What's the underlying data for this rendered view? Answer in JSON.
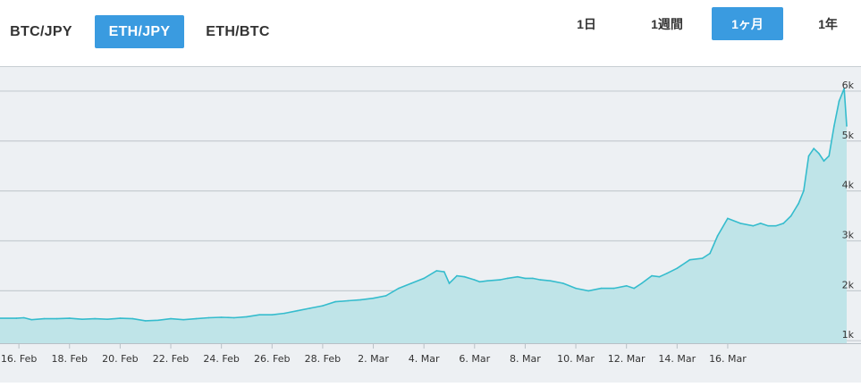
{
  "pair_tabs": [
    {
      "label": "BTC/JPY",
      "active": false
    },
    {
      "label": "ETH/JPY",
      "active": true
    },
    {
      "label": "ETH/BTC",
      "active": false
    }
  ],
  "range_tabs": [
    {
      "label": "1日",
      "active": false
    },
    {
      "label": "1週間",
      "active": false
    },
    {
      "label": "1ヶ月",
      "active": true
    },
    {
      "label": "1年",
      "active": false
    }
  ],
  "colors": {
    "accent": "#3a9be0",
    "line": "#35bccd",
    "fill": "#bfe4e8",
    "background": "#edf0f3"
  },
  "chart_data": {
    "type": "area",
    "title": "",
    "xlabel": "",
    "ylabel": "",
    "ylim": [
      0.95,
      6.5
    ],
    "y_ticks": [
      {
        "value": 1,
        "label": "1k"
      },
      {
        "value": 2,
        "label": "2k"
      },
      {
        "value": 3,
        "label": "3k"
      },
      {
        "value": 4,
        "label": "4k"
      },
      {
        "value": 5,
        "label": "5k"
      },
      {
        "value": 6,
        "label": "6k"
      }
    ],
    "x_ticks": [
      "16. Feb",
      "18. Feb",
      "20. Feb",
      "22. Feb",
      "24. Feb",
      "26. Feb",
      "28. Feb",
      "2. Mar",
      "4. Mar",
      "6. Mar",
      "8. Mar",
      "10. Mar",
      "12. Mar",
      "14. Mar",
      "16. Mar"
    ],
    "grid": true,
    "series": [
      {
        "x": [
          15.9,
          16.2,
          16.5,
          17.0,
          17.5,
          18.0,
          18.5,
          19.0,
          19.5,
          20.0,
          20.5,
          21.0,
          21.5,
          22.0,
          22.5,
          23.0,
          23.5,
          24.0,
          24.5,
          25.0,
          25.5,
          26.0,
          26.5,
          27.0,
          27.5,
          28.0,
          28.5,
          29.0,
          29.5,
          30.0,
          30.5,
          31.0,
          31.5,
          32.0,
          32.5,
          32.8,
          33.0,
          33.3,
          33.6,
          34.0,
          34.2,
          34.5,
          35.0,
          35.3,
          35.7,
          36.0,
          36.3,
          36.6,
          37.0,
          37.5,
          38.0,
          38.5,
          39.0,
          39.5,
          40.0,
          40.3,
          40.6,
          41.0,
          41.3,
          41.6,
          42.0,
          42.5,
          43.0,
          43.3,
          43.6,
          44.0,
          44.5,
          45.0,
          45.3,
          45.6,
          45.9,
          46.2,
          46.5,
          46.8,
          47.0,
          47.2,
          47.4,
          47.6,
          47.8,
          48.0,
          48.2,
          48.4,
          48.6,
          48.7
        ],
        "y": [
          1.45,
          1.46,
          1.42,
          1.44,
          1.44,
          1.45,
          1.43,
          1.44,
          1.43,
          1.45,
          1.44,
          1.4,
          1.41,
          1.44,
          1.42,
          1.44,
          1.46,
          1.47,
          1.46,
          1.48,
          1.52,
          1.52,
          1.55,
          1.6,
          1.65,
          1.7,
          1.78,
          1.8,
          1.82,
          1.85,
          1.9,
          2.05,
          2.15,
          2.25,
          2.4,
          2.38,
          2.15,
          2.3,
          2.28,
          2.22,
          2.18,
          2.2,
          2.22,
          2.25,
          2.28,
          2.25,
          2.25,
          2.22,
          2.2,
          2.15,
          2.05,
          2.0,
          2.05,
          2.05,
          2.1,
          2.05,
          2.15,
          2.3,
          2.28,
          2.35,
          2.45,
          2.62,
          2.65,
          2.75,
          3.1,
          3.45,
          3.35,
          3.3,
          3.35,
          3.3,
          3.3,
          3.35,
          3.5,
          3.75,
          4.0,
          4.7,
          4.85,
          4.75,
          4.6,
          4.7,
          5.3,
          5.8,
          6.05,
          5.3
        ]
      }
    ]
  }
}
